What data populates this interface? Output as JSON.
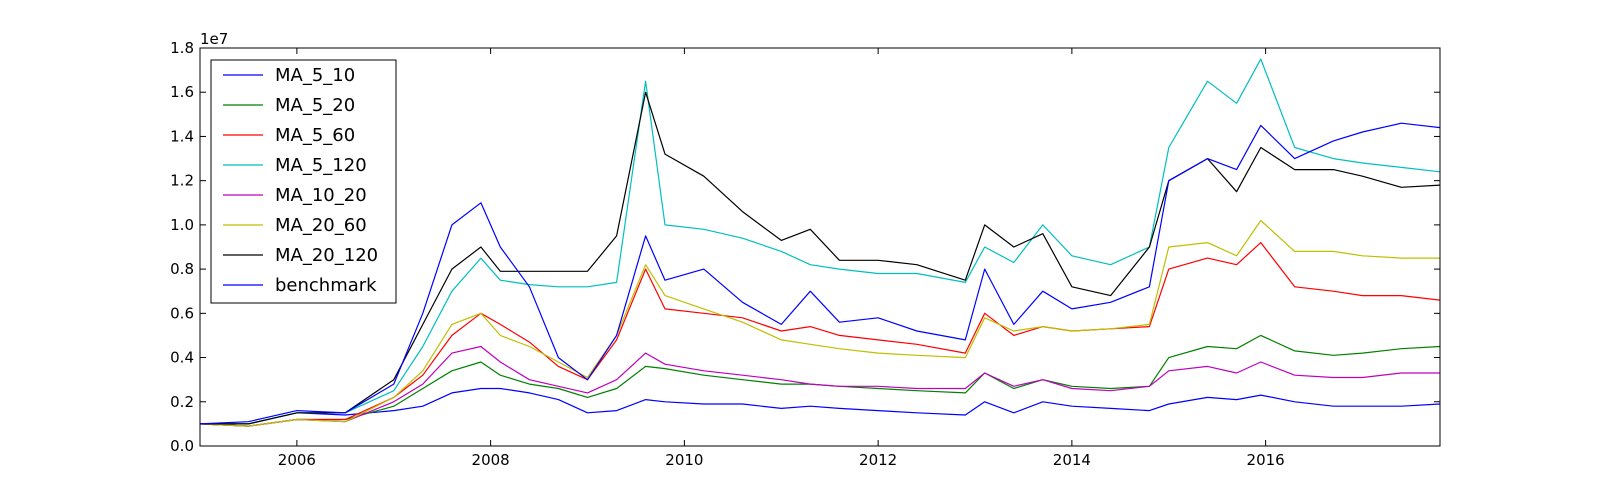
{
  "chart_data": {
    "type": "line",
    "title": "",
    "xlabel": "",
    "ylabel": "",
    "y_scale_label": "1e7",
    "xlim": [
      2005.0,
      2017.8
    ],
    "ylim": [
      0.0,
      1.8
    ],
    "x_ticks": [
      2006,
      2008,
      2010,
      2012,
      2014,
      2016
    ],
    "x_tick_labels": [
      "2006",
      "2008",
      "2010",
      "2012",
      "2014",
      "2016"
    ],
    "y_ticks": [
      0.0,
      0.2,
      0.4,
      0.6,
      0.8,
      1.0,
      1.2,
      1.4,
      1.6,
      1.8
    ],
    "y_tick_labels": [
      "0.0",
      "0.2",
      "0.4",
      "0.6",
      "0.8",
      "1.0",
      "1.2",
      "1.4",
      "1.6",
      "1.8"
    ],
    "grid": false,
    "legend_position": "upper-left",
    "x": [
      2005.0,
      2005.5,
      2006.0,
      2006.5,
      2007.0,
      2007.3,
      2007.6,
      2007.9,
      2008.1,
      2008.4,
      2008.7,
      2009.0,
      2009.3,
      2009.6,
      2009.8,
      2010.2,
      2010.6,
      2011.0,
      2011.3,
      2011.6,
      2012.0,
      2012.4,
      2012.9,
      2013.1,
      2013.4,
      2013.7,
      2014.0,
      2014.4,
      2014.8,
      2015.0,
      2015.4,
      2015.7,
      2015.95,
      2016.3,
      2016.7,
      2017.0,
      2017.4,
      2017.8
    ],
    "series": [
      {
        "name": "MA_5_10",
        "color": "#0000ff",
        "values": [
          0.1,
          0.1,
          0.15,
          0.14,
          0.16,
          0.18,
          0.24,
          0.26,
          0.26,
          0.24,
          0.21,
          0.15,
          0.16,
          0.21,
          0.2,
          0.19,
          0.19,
          0.17,
          0.18,
          0.17,
          0.16,
          0.15,
          0.14,
          0.2,
          0.15,
          0.2,
          0.18,
          0.17,
          0.16,
          0.19,
          0.22,
          0.21,
          0.23,
          0.2,
          0.18,
          0.18,
          0.18,
          0.19
        ]
      },
      {
        "name": "MA_5_20",
        "color": "#008000",
        "values": [
          0.1,
          0.09,
          0.12,
          0.12,
          0.18,
          0.26,
          0.34,
          0.38,
          0.32,
          0.28,
          0.26,
          0.22,
          0.26,
          0.36,
          0.35,
          0.32,
          0.3,
          0.28,
          0.28,
          0.27,
          0.26,
          0.25,
          0.24,
          0.33,
          0.26,
          0.3,
          0.27,
          0.26,
          0.27,
          0.4,
          0.45,
          0.44,
          0.5,
          0.43,
          0.41,
          0.42,
          0.44,
          0.45
        ]
      },
      {
        "name": "MA_5_60",
        "color": "#ff0000",
        "values": [
          0.1,
          0.09,
          0.12,
          0.12,
          0.22,
          0.32,
          0.5,
          0.6,
          0.55,
          0.47,
          0.36,
          0.3,
          0.48,
          0.8,
          0.62,
          0.6,
          0.58,
          0.52,
          0.54,
          0.5,
          0.48,
          0.46,
          0.42,
          0.6,
          0.5,
          0.54,
          0.52,
          0.53,
          0.54,
          0.8,
          0.85,
          0.82,
          0.92,
          0.72,
          0.7,
          0.68,
          0.68,
          0.66
        ]
      },
      {
        "name": "MA_5_120",
        "color": "#00bfbf",
        "values": [
          0.1,
          0.1,
          0.15,
          0.15,
          0.25,
          0.45,
          0.7,
          0.85,
          0.75,
          0.73,
          0.72,
          0.72,
          0.74,
          1.65,
          1.0,
          0.98,
          0.94,
          0.88,
          0.82,
          0.8,
          0.78,
          0.78,
          0.74,
          0.9,
          0.83,
          1.0,
          0.86,
          0.82,
          0.9,
          1.35,
          1.65,
          1.55,
          1.75,
          1.35,
          1.3,
          1.28,
          1.26,
          1.24
        ]
      },
      {
        "name": "MA_10_20",
        "color": "#bf00bf",
        "values": [
          0.1,
          0.09,
          0.12,
          0.11,
          0.2,
          0.28,
          0.42,
          0.45,
          0.38,
          0.3,
          0.27,
          0.24,
          0.3,
          0.42,
          0.37,
          0.34,
          0.32,
          0.3,
          0.28,
          0.27,
          0.27,
          0.26,
          0.26,
          0.33,
          0.27,
          0.3,
          0.26,
          0.25,
          0.27,
          0.34,
          0.36,
          0.33,
          0.38,
          0.32,
          0.31,
          0.31,
          0.33,
          0.33
        ]
      },
      {
        "name": "MA_20_60",
        "color": "#bfbf00",
        "values": [
          0.1,
          0.09,
          0.12,
          0.11,
          0.22,
          0.34,
          0.55,
          0.6,
          0.5,
          0.45,
          0.38,
          0.31,
          0.5,
          0.82,
          0.68,
          0.62,
          0.56,
          0.48,
          0.46,
          0.44,
          0.42,
          0.41,
          0.4,
          0.58,
          0.52,
          0.54,
          0.52,
          0.53,
          0.55,
          0.9,
          0.92,
          0.86,
          1.02,
          0.88,
          0.88,
          0.86,
          0.85,
          0.85
        ]
      },
      {
        "name": "MA_20_120",
        "color": "#000000",
        "values": [
          0.1,
          0.1,
          0.15,
          0.15,
          0.3,
          0.55,
          0.8,
          0.9,
          0.79,
          0.79,
          0.79,
          0.79,
          0.95,
          1.6,
          1.32,
          1.22,
          1.06,
          0.93,
          0.98,
          0.84,
          0.84,
          0.82,
          0.75,
          1.0,
          0.9,
          0.96,
          0.72,
          0.68,
          0.9,
          1.2,
          1.3,
          1.15,
          1.35,
          1.25,
          1.25,
          1.22,
          1.17,
          1.18
        ]
      },
      {
        "name": "benchmark",
        "color": "#0000ff",
        "values": [
          0.1,
          0.11,
          0.16,
          0.15,
          0.28,
          0.6,
          1.0,
          1.1,
          0.9,
          0.72,
          0.4,
          0.3,
          0.5,
          0.95,
          0.75,
          0.8,
          0.65,
          0.55,
          0.7,
          0.56,
          0.58,
          0.52,
          0.48,
          0.8,
          0.55,
          0.7,
          0.62,
          0.65,
          0.72,
          1.2,
          1.3,
          1.25,
          1.45,
          1.3,
          1.38,
          1.42,
          1.46,
          1.44
        ]
      }
    ]
  }
}
